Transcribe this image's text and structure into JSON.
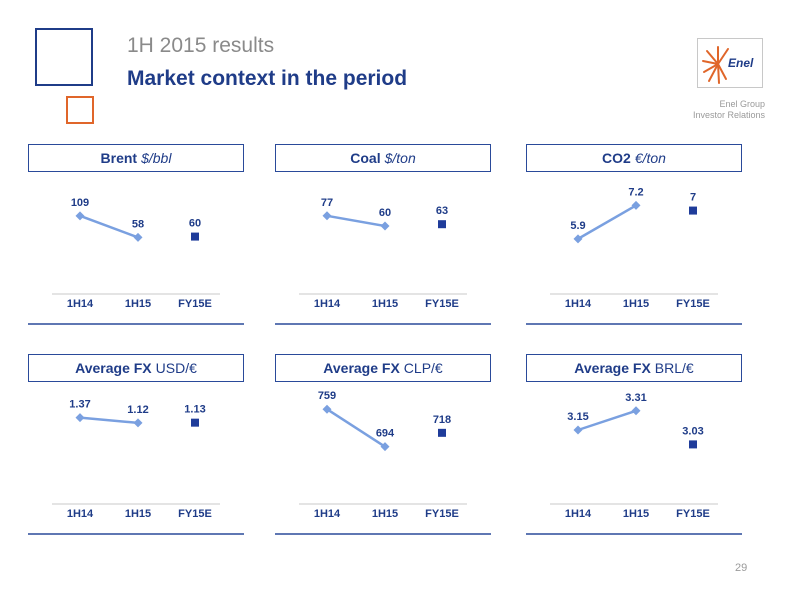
{
  "header": {
    "supertitle": "1H 2015 results",
    "title": "Market context in the period"
  },
  "brand": {
    "logo_text": "Enel",
    "group_line1": "Enel Group",
    "group_line2": "Investor Relations",
    "accent_color": "#1f3c88",
    "secondary_color": "#e0662a",
    "line_color": "#7aa0e0"
  },
  "page_number": "29",
  "chart_data": [
    {
      "type": "line",
      "title_bold": "Brent",
      "title_unit": "$/bbl",
      "title_unit_italic": true,
      "categories": [
        "1H14",
        "1H15",
        "FY15E"
      ],
      "series": [
        {
          "values": [
            109,
            58,
            null
          ],
          "labels": [
            "109",
            "58",
            ""
          ],
          "marker": "diamond"
        },
        {
          "values": [
            null,
            null,
            60
          ],
          "labels": [
            "",
            "",
            "60"
          ],
          "marker": "square"
        }
      ],
      "ylim": [
        0,
        170
      ]
    },
    {
      "type": "line",
      "title_bold": "Coal",
      "title_unit": "$/ton",
      "title_unit_italic": true,
      "categories": [
        "1H14",
        "1H15",
        "FY15E"
      ],
      "series": [
        {
          "values": [
            77,
            60,
            null
          ],
          "labels": [
            "77",
            "60",
            ""
          ],
          "marker": "diamond"
        },
        {
          "values": [
            null,
            null,
            63
          ],
          "labels": [
            "",
            "",
            "63"
          ],
          "marker": "square"
        }
      ],
      "ylim": [
        0,
        120
      ]
    },
    {
      "type": "line",
      "title_bold": "CO2",
      "title_unit": "€/ton",
      "title_unit_italic": true,
      "categories": [
        "1H14",
        "1H15",
        "FY15E"
      ],
      "series": [
        {
          "values": [
            5.9,
            7.2,
            null
          ],
          "labels": [
            "5.9",
            "7.2",
            ""
          ],
          "marker": "diamond"
        },
        {
          "values": [
            null,
            null,
            7
          ],
          "labels": [
            "",
            "",
            "7"
          ],
          "marker": "square"
        }
      ],
      "ylim": [
        5.0,
        7.8
      ]
    },
    {
      "type": "line",
      "title_bold": "Average FX",
      "title_unit": "USD/€",
      "title_unit_italic": false,
      "categories": [
        "1H14",
        "1H15",
        "FY15E"
      ],
      "series": [
        {
          "values": [
            1.37,
            1.12,
            null
          ],
          "labels": [
            "1.37",
            "1.12",
            ""
          ],
          "marker": "diamond"
        },
        {
          "values": [
            null,
            null,
            1.13
          ],
          "labels": [
            "",
            "",
            "1.13"
          ],
          "marker": "square"
        }
      ],
      "ylim": [
        -1.2,
        2.2
      ]
    },
    {
      "type": "line",
      "title_bold": "Average FX",
      "title_unit": "CLP/€",
      "title_unit_italic": false,
      "categories": [
        "1H14",
        "1H15",
        "FY15E"
      ],
      "series": [
        {
          "values": [
            759,
            694,
            null
          ],
          "labels": [
            "759",
            "694",
            ""
          ],
          "marker": "diamond"
        },
        {
          "values": [
            null,
            null,
            718
          ],
          "labels": [
            "",
            "",
            "718"
          ],
          "marker": "square"
        }
      ],
      "ylim": [
        650,
        775
      ]
    },
    {
      "type": "line",
      "title_bold": "Average FX",
      "title_unit": "BRL/€",
      "title_unit_italic": false,
      "categories": [
        "1H14",
        "1H15",
        "FY15E"
      ],
      "series": [
        {
          "values": [
            3.15,
            3.31,
            null
          ],
          "labels": [
            "3.15",
            "3.31",
            ""
          ],
          "marker": "diamond"
        },
        {
          "values": [
            null,
            null,
            3.03
          ],
          "labels": [
            "",
            "",
            "3.03"
          ],
          "marker": "square"
        }
      ],
      "ylim": [
        2.8,
        3.4
      ]
    }
  ]
}
